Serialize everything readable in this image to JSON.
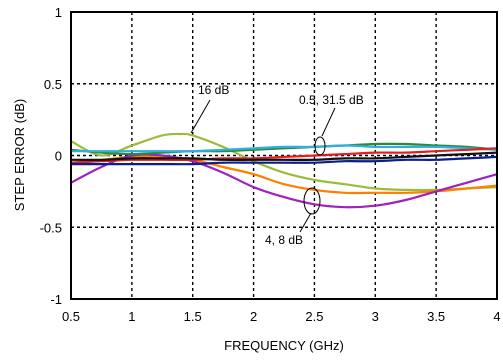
{
  "chart_data": {
    "type": "line",
    "title": "",
    "xlabel": "FREQUENCY (GHz)",
    "ylabel": "STEP ERROR (dB)",
    "xlim": [
      0.5,
      4
    ],
    "ylim": [
      -1,
      1
    ],
    "xticks": [
      0.5,
      1,
      1.5,
      2,
      2.5,
      3,
      3.5,
      4
    ],
    "xtick_labels": [
      "0.5",
      "1",
      "1.5",
      "2",
      "2.5",
      "3",
      "3.5",
      "4"
    ],
    "yticks": [
      -1,
      -0.5,
      0,
      0.5,
      1
    ],
    "ytick_labels": [
      "-1",
      "-0.5",
      "0",
      "0.5",
      "1"
    ],
    "grid": "dotted",
    "legend": "none",
    "annotations": [
      {
        "text": "16 dB",
        "x": 1.45,
        "y": 0.46
      },
      {
        "text": "0.5, 31.5 dB",
        "x": 2.4,
        "y": 0.39
      },
      {
        "text": "4, 8 dB",
        "x": 2.4,
        "y": -0.58
      }
    ],
    "series": [
      {
        "color": "#9bbb3a",
        "x": [
          0.5,
          0.75,
          1,
          1.25,
          1.4,
          1.5,
          1.75,
          2,
          2.25,
          2.5,
          2.75,
          3,
          3.25,
          3.5,
          3.75,
          4
        ],
        "y": [
          0.1,
          0.0,
          0.07,
          0.14,
          0.15,
          0.14,
          0.06,
          -0.04,
          -0.12,
          -0.17,
          -0.2,
          -0.23,
          -0.24,
          -0.24,
          -0.23,
          -0.22
        ]
      },
      {
        "color": "#ff7f00",
        "x": [
          0.5,
          0.75,
          1,
          1.25,
          1.5,
          1.75,
          2,
          2.25,
          2.5,
          2.75,
          3,
          3.25,
          3.5,
          3.75,
          4
        ],
        "y": [
          -0.05,
          -0.03,
          -0.01,
          -0.01,
          -0.03,
          -0.08,
          -0.13,
          -0.2,
          -0.24,
          -0.26,
          -0.26,
          -0.26,
          -0.25,
          -0.23,
          -0.21
        ]
      },
      {
        "color": "#a020c0",
        "x": [
          0.5,
          0.75,
          1,
          1.25,
          1.5,
          1.75,
          2,
          2.25,
          2.5,
          2.75,
          3,
          3.25,
          3.5,
          3.75,
          4
        ],
        "y": [
          -0.19,
          -0.08,
          0.0,
          0.0,
          -0.04,
          -0.12,
          -0.22,
          -0.29,
          -0.34,
          -0.36,
          -0.35,
          -0.31,
          -0.25,
          -0.19,
          -0.13
        ]
      },
      {
        "color": "#2a8a3a",
        "x": [
          0.5,
          0.75,
          1,
          1.25,
          1.5,
          1.75,
          2,
          2.25,
          2.5,
          2.75,
          3,
          3.25,
          3.5,
          3.75,
          4
        ],
        "y": [
          0.04,
          0.02,
          0.01,
          0.02,
          0.03,
          0.03,
          0.04,
          0.05,
          0.06,
          0.07,
          0.08,
          0.08,
          0.07,
          0.06,
          0.04
        ]
      },
      {
        "color": "#30aee0",
        "x": [
          0.5,
          0.75,
          1,
          1.25,
          1.5,
          1.75,
          2,
          2.25,
          2.5,
          2.75,
          3,
          3.25,
          3.5,
          3.75,
          4
        ],
        "y": [
          0.03,
          0.03,
          0.03,
          0.03,
          0.03,
          0.04,
          0.05,
          0.06,
          0.06,
          0.07,
          0.06,
          0.06,
          0.06,
          0.05,
          0.04
        ]
      },
      {
        "color": "#e02020",
        "x": [
          0.5,
          0.75,
          1,
          1.25,
          1.5,
          1.75,
          2,
          2.25,
          2.5,
          2.75,
          3,
          3.25,
          3.5,
          3.75,
          4
        ],
        "y": [
          -0.05,
          -0.04,
          -0.03,
          -0.03,
          -0.03,
          -0.02,
          -0.02,
          -0.01,
          0.0,
          0.01,
          0.02,
          0.02,
          0.03,
          0.04,
          0.05
        ]
      },
      {
        "color": "#111111",
        "x": [
          0.5,
          0.75,
          1,
          1.25,
          1.5,
          1.75,
          2,
          2.25,
          2.5,
          2.75,
          3,
          3.25,
          3.5,
          3.75,
          4
        ],
        "y": [
          -0.03,
          -0.03,
          -0.02,
          -0.02,
          -0.02,
          -0.03,
          -0.03,
          -0.03,
          -0.03,
          -0.02,
          -0.02,
          -0.01,
          0.0,
          0.01,
          0.02
        ]
      },
      {
        "color": "#0a1f8f",
        "x": [
          0.5,
          0.75,
          1,
          1.25,
          1.5,
          1.75,
          2,
          2.25,
          2.5,
          2.75,
          3,
          3.25,
          3.5,
          3.75,
          4
        ],
        "y": [
          -0.06,
          -0.06,
          -0.06,
          -0.06,
          -0.06,
          -0.05,
          -0.05,
          -0.05,
          -0.05,
          -0.04,
          -0.04,
          -0.03,
          -0.03,
          -0.02,
          -0.01
        ]
      }
    ]
  }
}
